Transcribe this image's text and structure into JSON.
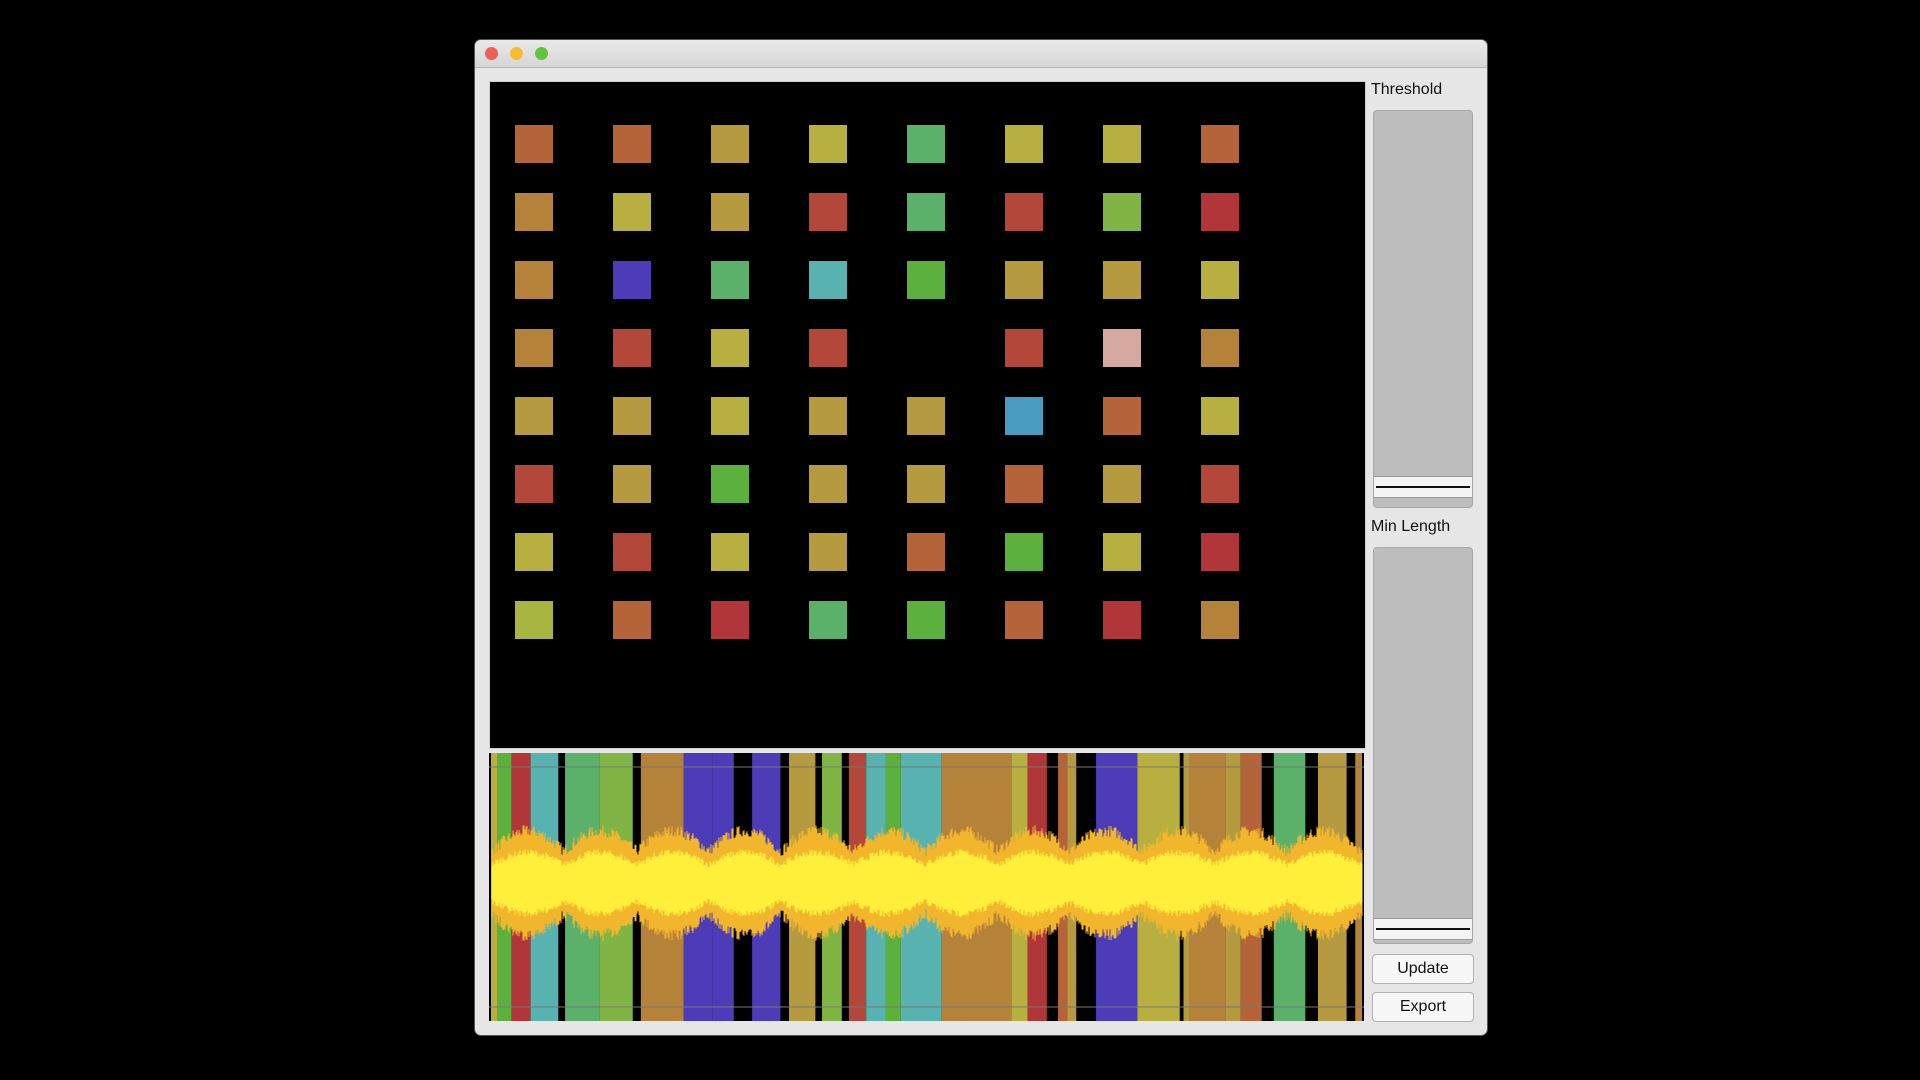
{
  "controls": {
    "threshold_label": "Threshold",
    "min_length_label": "Min Length",
    "update_button": "Update",
    "export_button": "Export"
  }
}
